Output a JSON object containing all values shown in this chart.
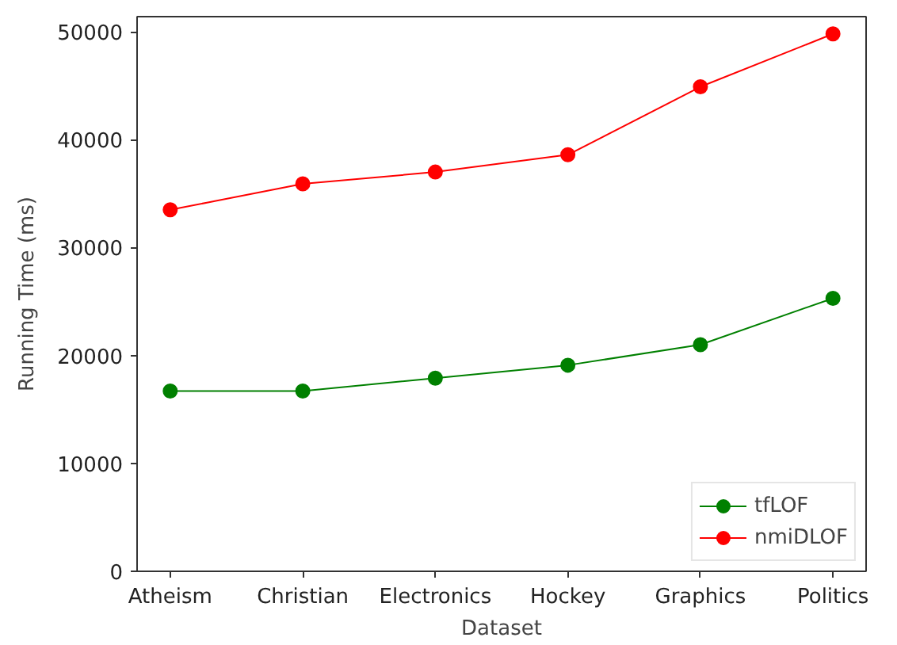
{
  "chart_data": {
    "type": "line",
    "xlabel": "Dataset",
    "ylabel": "Running Time (ms)",
    "categories": [
      "Atheism",
      "Christian",
      "Electronics",
      "Hockey",
      "Graphics",
      "Politics"
    ],
    "series": [
      {
        "name": "tfLOF",
        "color": "#008000",
        "values": [
          16700,
          16700,
          17900,
          19100,
          21000,
          25300
        ]
      },
      {
        "name": "nmiDLOF",
        "color": "#ff0000",
        "values": [
          33500,
          35900,
          37000,
          38600,
          44900,
          49800
        ]
      }
    ],
    "ylim": [
      0,
      51400
    ],
    "yticks": [
      0,
      10000,
      20000,
      30000,
      40000,
      50000
    ],
    "grid": false,
    "legend": "bottom right",
    "marker": "circle",
    "line_style": "solid"
  }
}
